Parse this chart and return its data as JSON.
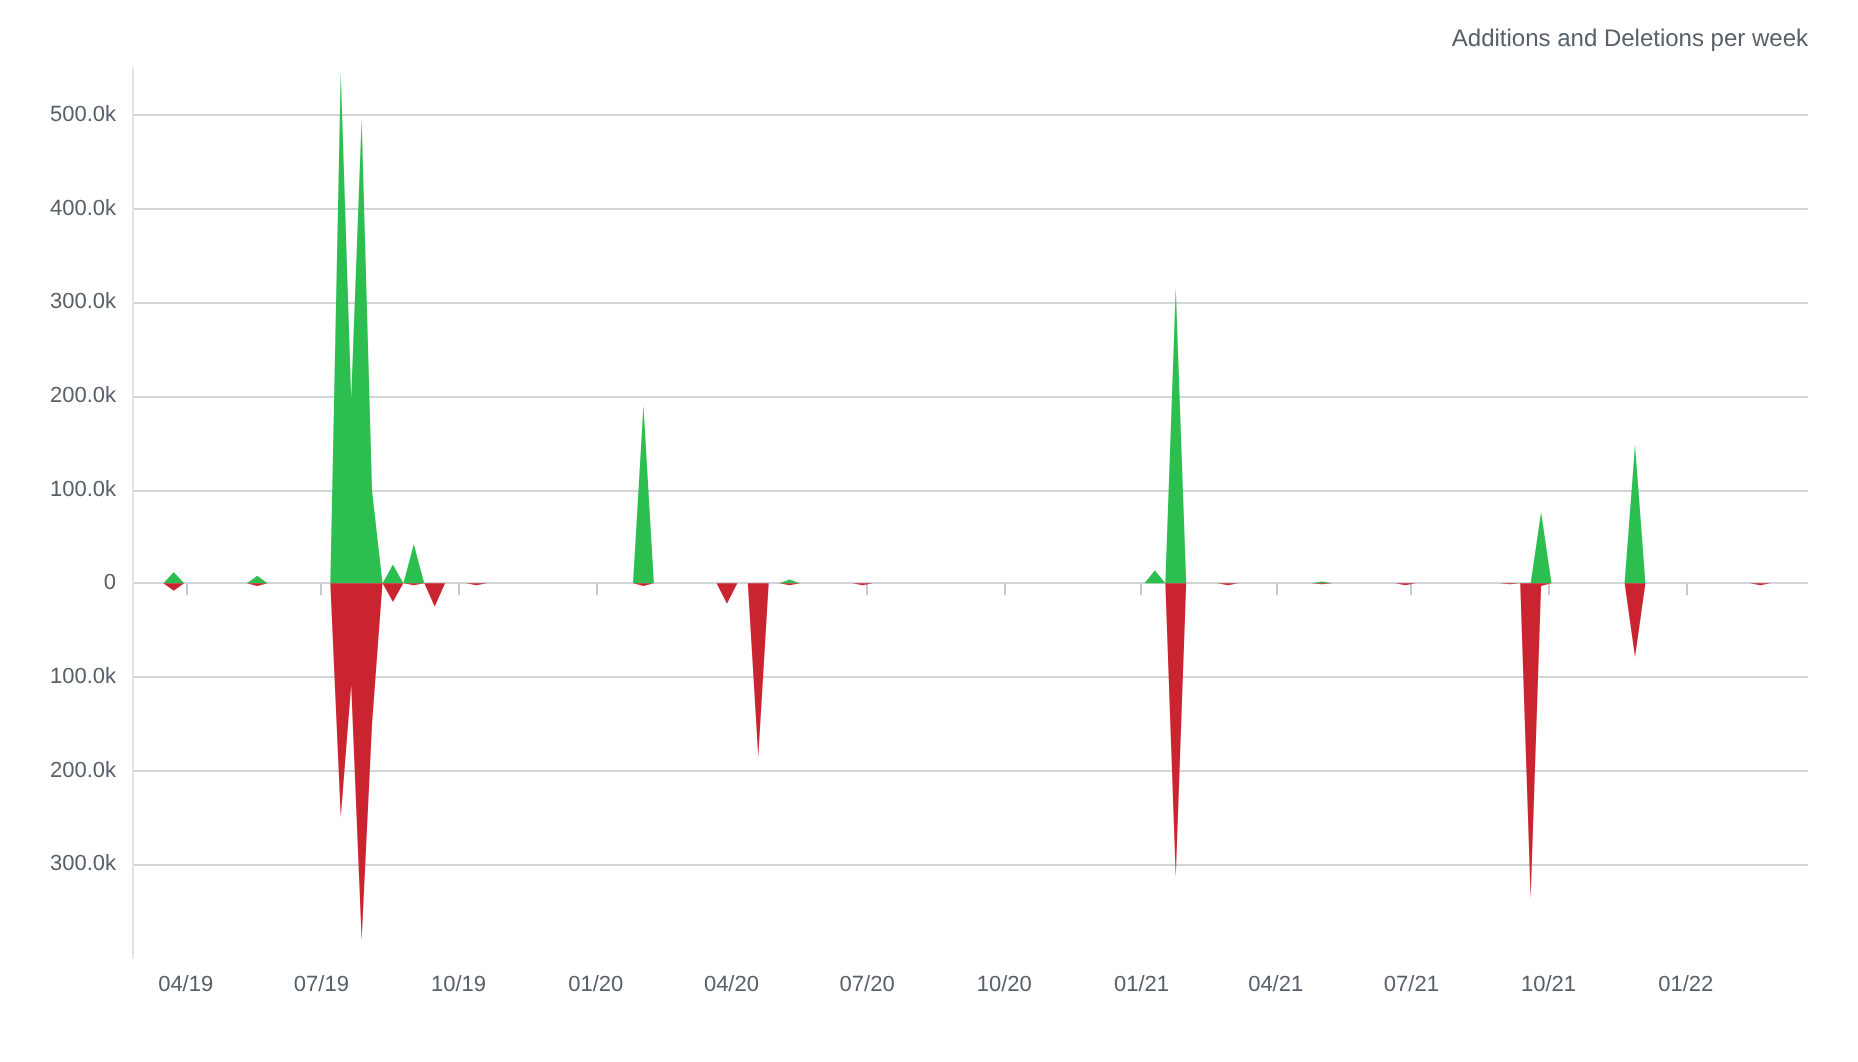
{
  "chart_data": {
    "type": "area",
    "title": "Additions and Deletions per week",
    "x": [
      "2019-03-03",
      "2019-03-17",
      "2019-03-24",
      "2019-03-31",
      "2019-05-12",
      "2019-05-19",
      "2019-05-26",
      "2019-07-07",
      "2019-07-14",
      "2019-07-21",
      "2019-07-28",
      "2019-08-04",
      "2019-08-11",
      "2019-08-18",
      "2019-08-25",
      "2019-09-01",
      "2019-09-08",
      "2019-09-15",
      "2019-09-22",
      "2019-10-06",
      "2019-10-13",
      "2019-10-20",
      "2020-01-26",
      "2020-02-02",
      "2020-02-09",
      "2020-03-22",
      "2020-03-29",
      "2020-04-05",
      "2020-04-12",
      "2020-04-19",
      "2020-04-26",
      "2020-05-03",
      "2020-05-10",
      "2020-05-17",
      "2020-06-21",
      "2020-06-28",
      "2020-07-05",
      "2021-01-03",
      "2021-01-10",
      "2021-01-17",
      "2021-01-24",
      "2021-01-31",
      "2021-02-21",
      "2021-02-28",
      "2021-03-07",
      "2021-04-25",
      "2021-05-02",
      "2021-05-09",
      "2021-06-20",
      "2021-06-27",
      "2021-07-04",
      "2021-08-29",
      "2021-09-05",
      "2021-09-12",
      "2021-09-19",
      "2021-09-26",
      "2021-10-03",
      "2021-11-21",
      "2021-11-28",
      "2021-12-05",
      "2022-02-13",
      "2022-02-20",
      "2022-02-27",
      "2022-03-13"
    ],
    "series": [
      {
        "color": "#2cbe4e",
        "values": [
          0,
          0,
          12000,
          0,
          0,
          8000,
          0,
          0,
          546000,
          198000,
          496000,
          99000,
          0,
          20000,
          0,
          42000,
          0,
          0,
          0,
          0,
          0,
          0,
          0,
          190000,
          0,
          0,
          0,
          0,
          0,
          0,
          0,
          0,
          4000,
          0,
          0,
          0,
          0,
          0,
          14000,
          0,
          316000,
          0,
          0,
          0,
          0,
          0,
          2000,
          0,
          0,
          0,
          0,
          0,
          0,
          0,
          0,
          76000,
          0,
          0,
          148000,
          0,
          0,
          0,
          0,
          0
        ]
      },
      {
        "color": "#cb2431",
        "values": [
          0,
          0,
          -8000,
          0,
          0,
          -3000,
          0,
          0,
          -250000,
          -109000,
          -381000,
          -150000,
          0,
          -20000,
          0,
          -2000,
          0,
          -25000,
          0,
          0,
          -2000,
          0,
          0,
          -3000,
          0,
          0,
          -22000,
          0,
          0,
          -186000,
          0,
          0,
          -2000,
          0,
          0,
          -2000,
          0,
          0,
          0,
          0,
          -314000,
          0,
          0,
          -2000,
          0,
          0,
          -1000,
          0,
          0,
          -2000,
          0,
          0,
          -1000,
          0,
          -337000,
          -3000,
          0,
          0,
          -79000,
          0,
          0,
          -2000,
          0,
          0
        ]
      }
    ],
    "xlim": [
      "2019-02-24",
      "2022-03-24"
    ],
    "xticks": [
      {
        "value": "2019-04-01",
        "label": "04/19"
      },
      {
        "value": "2019-07-01",
        "label": "07/19"
      },
      {
        "value": "2019-10-01",
        "label": "10/19"
      },
      {
        "value": "2020-01-01",
        "label": "01/20"
      },
      {
        "value": "2020-04-01",
        "label": "04/20"
      },
      {
        "value": "2020-07-01",
        "label": "07/20"
      },
      {
        "value": "2020-10-01",
        "label": "10/20"
      },
      {
        "value": "2021-01-01",
        "label": "01/21"
      },
      {
        "value": "2021-04-01",
        "label": "04/21"
      },
      {
        "value": "2021-07-01",
        "label": "07/21"
      },
      {
        "value": "2021-10-01",
        "label": "10/21"
      },
      {
        "value": "2022-01-01",
        "label": "01/22"
      }
    ],
    "ylim": [
      -400000,
      550000
    ],
    "yticks": [
      {
        "value": -300000,
        "label": "300.0k"
      },
      {
        "value": -200000,
        "label": "200.0k"
      },
      {
        "value": -100000,
        "label": "100.0k"
      },
      0,
      {
        "value": 100000,
        "label": "100.0k"
      },
      {
        "value": 200000,
        "label": "200.0k"
      },
      {
        "value": 300000,
        "label": "300.0k"
      },
      {
        "value": 400000,
        "label": "400.0k"
      },
      {
        "value": 500000,
        "label": "500.0k"
      }
    ],
    "grid": "y",
    "marker": "none"
  }
}
